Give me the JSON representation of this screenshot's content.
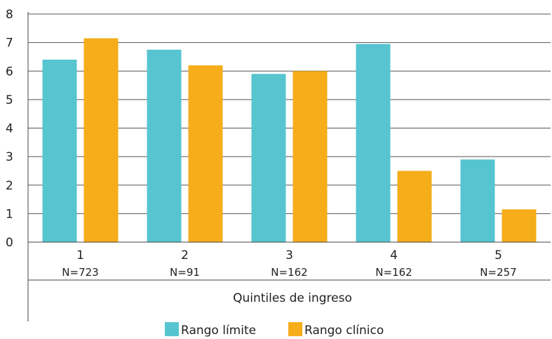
{
  "chart_data": {
    "type": "bar",
    "categories": [
      "1",
      "2",
      "3",
      "4",
      "5"
    ],
    "sample_sizes": [
      "N=723",
      "N=91",
      "N=162",
      "N=162",
      "N=257"
    ],
    "series": [
      {
        "name": "Rango límite",
        "color": "#56c5d0",
        "values": [
          6.4,
          6.75,
          5.9,
          6.95,
          2.9
        ]
      },
      {
        "name": "Rango clínico",
        "color": "#f5ad1a",
        "values": [
          7.15,
          6.2,
          6.0,
          2.5,
          1.15
        ]
      }
    ],
    "xlabel": "Quintiles de ingreso",
    "ylabel": "",
    "ylim": [
      0,
      8
    ],
    "yticks": [
      0,
      1,
      2,
      3,
      4,
      5,
      6,
      7,
      8
    ],
    "grid": true,
    "legend_position": "bottom-center"
  }
}
